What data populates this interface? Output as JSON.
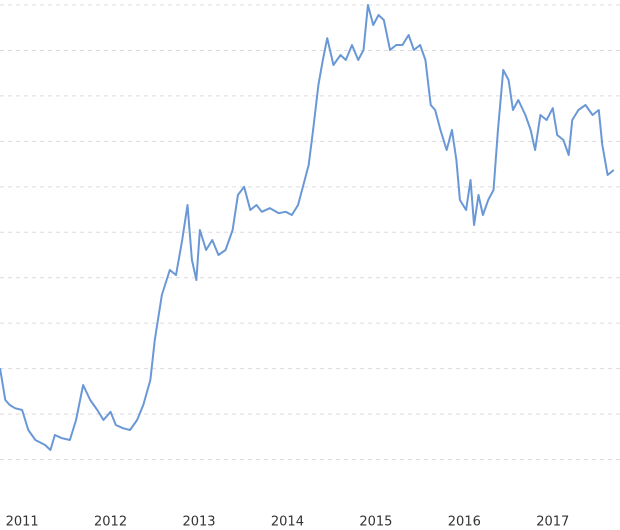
{
  "chart_data": {
    "type": "line",
    "color": "#6a98d6",
    "grid": true,
    "xlim": [
      2010.75,
      2017.76
    ],
    "xticks": [
      2011,
      2012,
      2013,
      2014,
      2015,
      2016,
      2017
    ],
    "ylim": [
      0,
      11.11
    ],
    "yticks": [
      1,
      2,
      3,
      4,
      5,
      6,
      7,
      8,
      9,
      10,
      11
    ],
    "x": [
      2010.75,
      2010.81,
      2010.86,
      2010.92,
      2011.0,
      2011.07,
      2011.15,
      2011.26,
      2011.32,
      2011.37,
      2011.45,
      2011.54,
      2011.61,
      2011.69,
      2011.77,
      2011.85,
      2011.92,
      2012.0,
      2012.06,
      2012.14,
      2012.22,
      2012.3,
      2012.37,
      2012.45,
      2012.5,
      2012.58,
      2012.67,
      2012.74,
      2012.81,
      2012.87,
      2012.92,
      2012.97,
      2013.01,
      2013.08,
      2013.15,
      2013.22,
      2013.3,
      2013.38,
      2013.44,
      2013.51,
      2013.58,
      2013.65,
      2013.71,
      2013.8,
      2013.9,
      2013.98,
      2014.05,
      2014.12,
      2014.18,
      2014.24,
      2014.29,
      2014.35,
      2014.4,
      2014.45,
      2014.52,
      2014.6,
      2014.66,
      2014.73,
      2014.8,
      2014.86,
      2014.91,
      2014.97,
      2015.03,
      2015.09,
      2015.16,
      2015.23,
      2015.3,
      2015.37,
      2015.43,
      2015.5,
      2015.56,
      2015.62,
      2015.67,
      2015.73,
      2015.8,
      2015.86,
      2015.91,
      2015.95,
      2016.02,
      2016.07,
      2016.11,
      2016.16,
      2016.21,
      2016.27,
      2016.33,
      2016.38,
      2016.44,
      2016.5,
      2016.55,
      2016.61,
      2016.69,
      2016.75,
      2016.8,
      2016.86,
      2016.93,
      2017.0,
      2017.05,
      2017.12,
      2017.18,
      2017.22,
      2017.29,
      2017.37,
      2017.45,
      2017.52,
      2017.56,
      2017.62,
      2017.69
    ],
    "values": [
      3.01,
      2.31,
      2.2,
      2.13,
      2.09,
      1.65,
      1.43,
      1.32,
      1.21,
      1.54,
      1.47,
      1.43,
      1.87,
      2.64,
      2.31,
      2.09,
      1.87,
      2.05,
      1.76,
      1.69,
      1.65,
      1.87,
      2.2,
      2.75,
      3.63,
      4.62,
      5.17,
      5.06,
      5.83,
      6.6,
      5.39,
      4.95,
      6.05,
      5.61,
      5.83,
      5.5,
      5.61,
      6.05,
      6.82,
      7.0,
      6.49,
      6.6,
      6.45,
      6.53,
      6.42,
      6.45,
      6.38,
      6.6,
      7.04,
      7.48,
      8.25,
      9.24,
      9.79,
      10.27,
      9.68,
      9.9,
      9.79,
      10.12,
      9.79,
      10.01,
      11.0,
      10.56,
      10.78,
      10.67,
      10.01,
      10.12,
      10.12,
      10.34,
      10.01,
      10.12,
      9.79,
      8.8,
      8.69,
      8.25,
      7.81,
      8.25,
      7.59,
      6.71,
      6.49,
      7.15,
      6.16,
      6.82,
      6.38,
      6.71,
      6.93,
      8.25,
      9.57,
      9.35,
      8.69,
      8.91,
      8.58,
      8.25,
      7.81,
      8.58,
      8.47,
      8.73,
      8.14,
      8.03,
      7.7,
      8.47,
      8.69,
      8.8,
      8.58,
      8.69,
      7.92,
      7.26,
      7.37
    ]
  }
}
